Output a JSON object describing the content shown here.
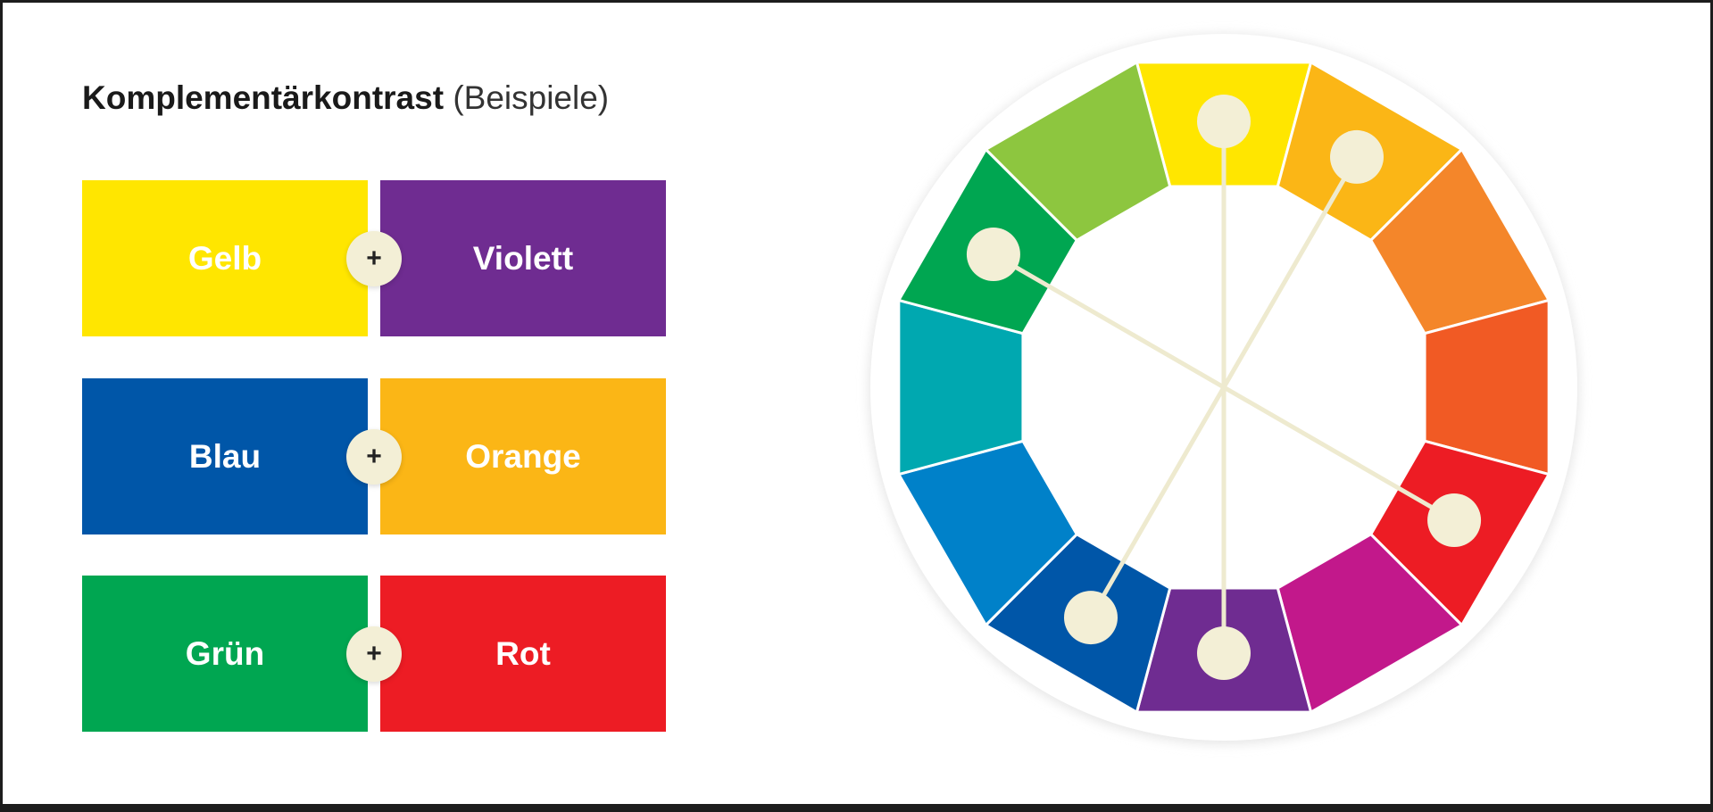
{
  "title": "Komplementärkontrast",
  "subtitle": "(Beispiele)",
  "operator": "+",
  "pairs": [
    {
      "left": {
        "label": "Gelb",
        "color": "#ffe600"
      },
      "right": {
        "label": "Violett",
        "color": "#6f2c91"
      }
    },
    {
      "left": {
        "label": "Blau",
        "color": "#0056a8"
      },
      "right": {
        "label": "Orange",
        "color": "#fbb616"
      }
    },
    {
      "left": {
        "label": "Grün",
        "color": "#00a651"
      },
      "right": {
        "label": "Rot",
        "color": "#ed1c24"
      }
    }
  ],
  "wheel": {
    "segments": [
      "#ffe600",
      "#fbb616",
      "#f4862a",
      "#f15a24",
      "#ed1c24",
      "#c2188b",
      "#6f2c91",
      "#0056a8",
      "#0081c9",
      "#00a8b0",
      "#00a651",
      "#8dc63f"
    ],
    "connections": [
      [
        0,
        6
      ],
      [
        1,
        7
      ],
      [
        10,
        4
      ]
    ]
  }
}
